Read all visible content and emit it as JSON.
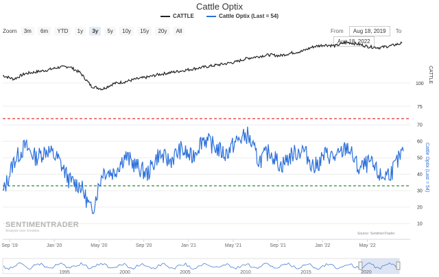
{
  "chart_data": {
    "type": "line",
    "title": "Cattle Optix",
    "legend": [
      "CATTLE",
      "Cattle Optix (Last = 54)"
    ],
    "legend_placement": "top-center",
    "x_ticks": [
      "Sep '19",
      "Jan '20",
      "May '20",
      "Sep '20",
      "Jan '21",
      "May '21",
      "Sep '21",
      "Jan '22",
      "May '22"
    ],
    "navigator_ticks": [
      "1995",
      "2000",
      "2005",
      "2010",
      "2015",
      "2020"
    ],
    "top_panel": {
      "ylabel": "CATTLE",
      "y_ticks": [
        100,
        75
      ],
      "series": [
        {
          "name": "CATTLE",
          "x": [
            "2019-08",
            "2019-09",
            "2019-10",
            "2019-11",
            "2019-12",
            "2020-01",
            "2020-02",
            "2020-03",
            "2020-04",
            "2020-05",
            "2020-06",
            "2020-07",
            "2020-08",
            "2020-09",
            "2020-10",
            "2020-11",
            "2020-12",
            "2021-01",
            "2021-02",
            "2021-03",
            "2021-04",
            "2021-05",
            "2021-06",
            "2021-07",
            "2021-08",
            "2021-09",
            "2021-10",
            "2021-11",
            "2021-12",
            "2022-01",
            "2022-02",
            "2022-03",
            "2022-04",
            "2022-05",
            "2022-06",
            "2022-07",
            "2022-08"
          ],
          "values": [
            108,
            104,
            110,
            112,
            114,
            117,
            118,
            111,
            96,
            93,
            99,
            101,
            104,
            106,
            109,
            111,
            113,
            115,
            117,
            119,
            121,
            123,
            127,
            129,
            131,
            130,
            133,
            135,
            140,
            142,
            141,
            145,
            143,
            140,
            139,
            141,
            144
          ]
        }
      ]
    },
    "bottom_panel": {
      "ylabel": "Cattle Optix (Last = 54)",
      "y_ticks": [
        70,
        60,
        50,
        40,
        30,
        20,
        10
      ],
      "ylim": [
        5,
        78
      ],
      "reference_lines": [
        72,
        34
      ],
      "series": [
        {
          "name": "Cattle Optix (Last = 54)",
          "x": [
            "2019-08",
            "2019-09",
            "2019-10",
            "2019-11",
            "2019-12",
            "2020-01",
            "2020-02",
            "2020-03",
            "2020-04",
            "2020-05",
            "2020-06",
            "2020-07",
            "2020-08",
            "2020-09",
            "2020-10",
            "2020-11",
            "2020-12",
            "2021-01",
            "2021-02",
            "2021-03",
            "2021-04",
            "2021-05",
            "2021-06",
            "2021-07",
            "2021-08",
            "2021-09",
            "2021-10",
            "2021-11",
            "2021-12",
            "2022-01",
            "2022-02",
            "2022-03",
            "2022-04",
            "2022-05",
            "2022-06",
            "2022-07",
            "2022-08"
          ],
          "values": [
            28,
            48,
            57,
            50,
            55,
            49,
            36,
            33,
            17,
            42,
            41,
            51,
            45,
            40,
            52,
            48,
            55,
            50,
            62,
            57,
            52,
            60,
            64,
            48,
            54,
            45,
            52,
            55,
            44,
            52,
            50,
            57,
            43,
            47,
            38,
            42,
            54
          ]
        }
      ]
    }
  },
  "ui": {
    "zoom_label": "Zoom",
    "zoom_buttons": [
      "3m",
      "6m",
      "YTD",
      "1y",
      "3y",
      "5y",
      "10y",
      "15y",
      "20y",
      "All"
    ],
    "zoom_selected": "3y",
    "from_label": "From",
    "from_date": "Aug 18, 2019",
    "to_label": "To",
    "to_date": "Aug 18, 2022",
    "source": "Source: SentimenTrader",
    "logo_name": "SENTIMENTRADER",
    "logo_tag": "Analysis over Emotion"
  },
  "colors": {
    "cattle": "#222222",
    "optix": "#2a6fdb",
    "upper_line": "#e03030",
    "lower_line": "#2a8a2a"
  }
}
